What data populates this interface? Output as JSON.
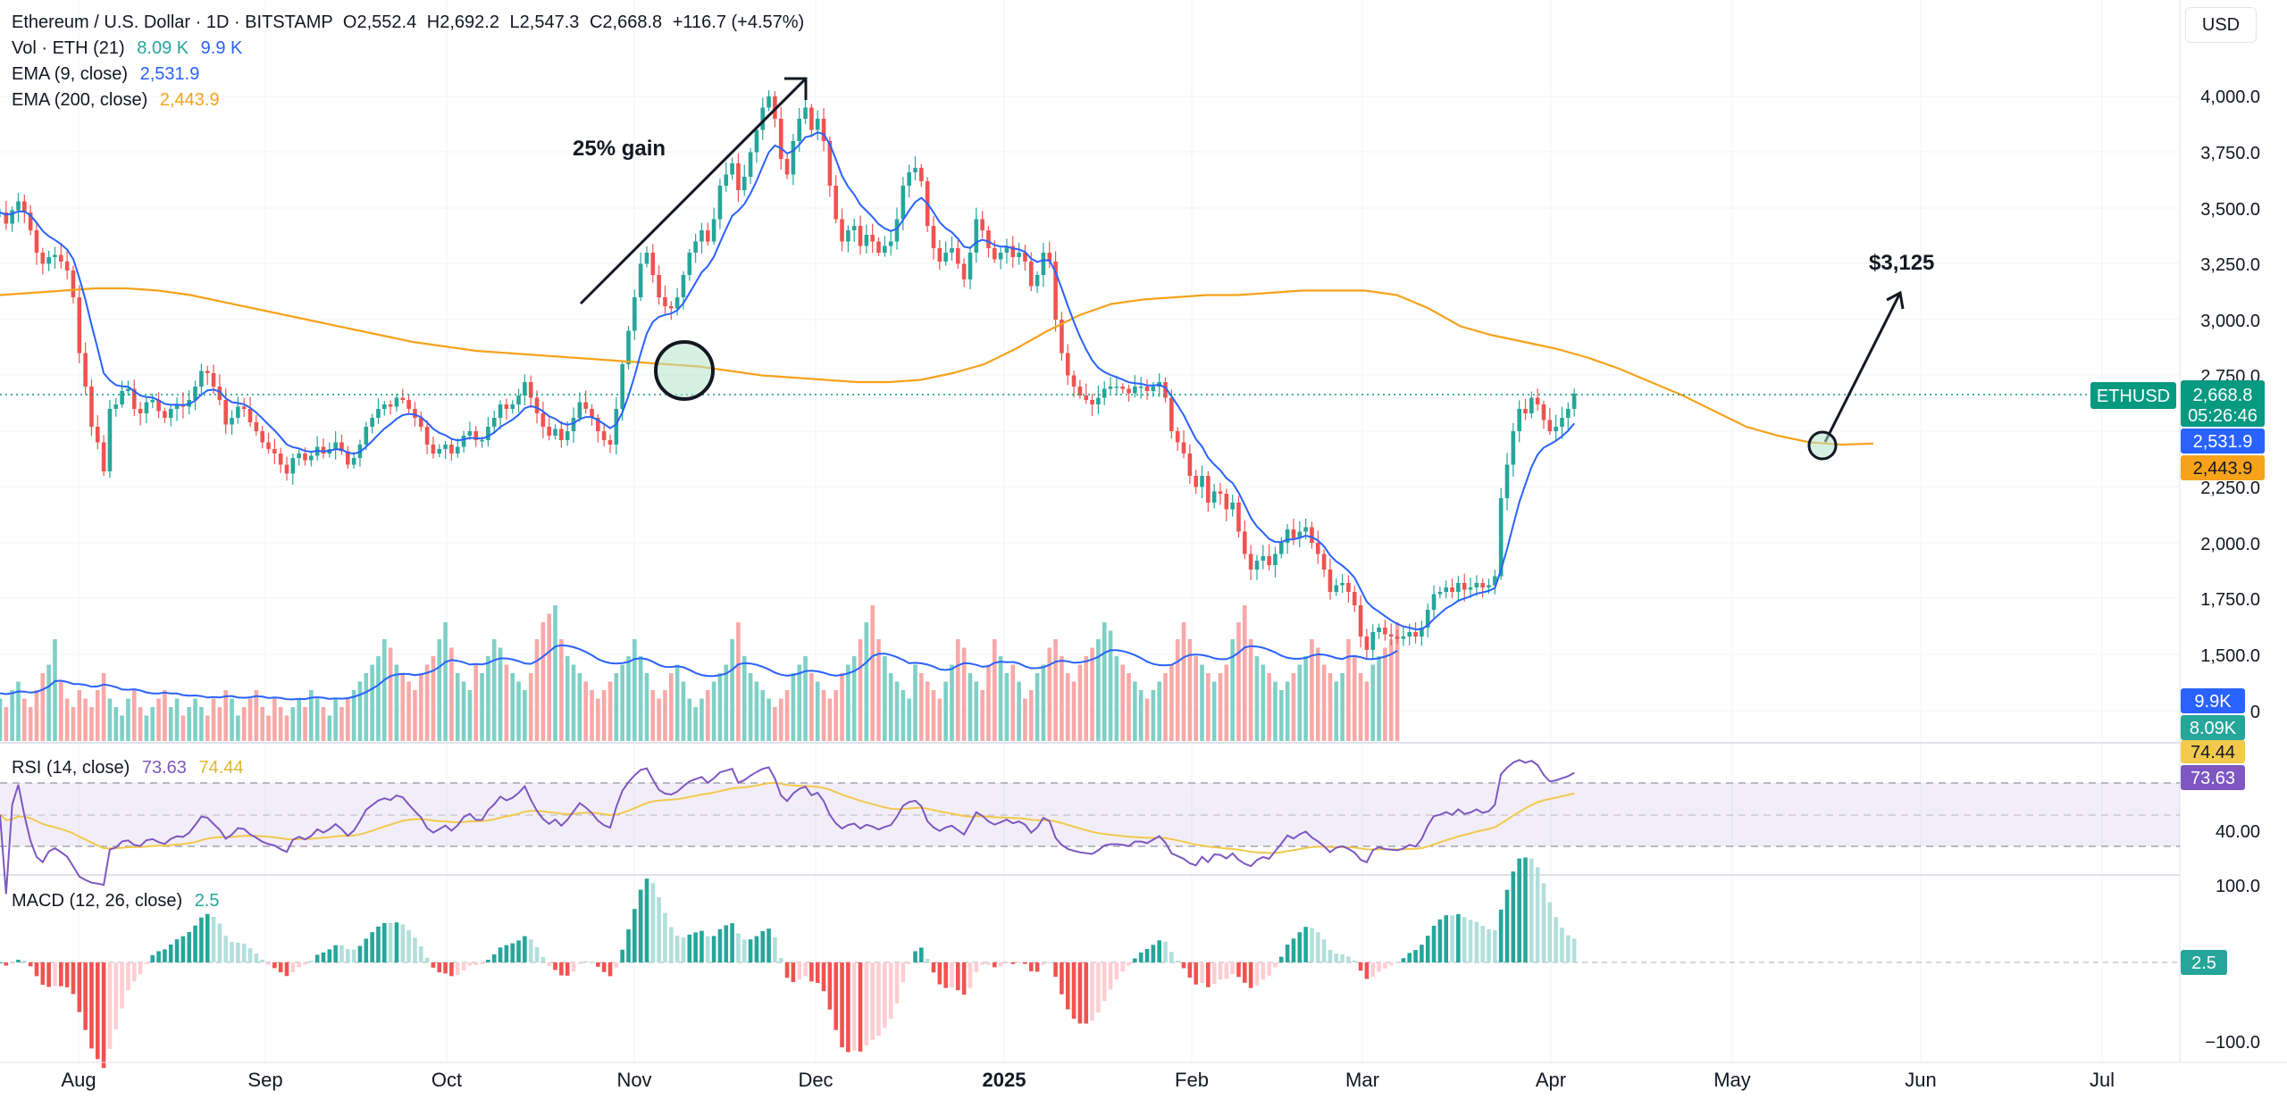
{
  "header": {
    "symbol_title": "Ethereum / U.S. Dollar · 1D · BITSTAMP",
    "ohlc": {
      "o_label": "O",
      "o": "2,552.4",
      "h_label": "H",
      "h": "2,692.2",
      "l_label": "L",
      "l": "2,547.3",
      "c_label": "C",
      "c": "2,668.8",
      "change": "+116.7 (+4.57%)"
    },
    "vol": {
      "label": "Vol · ETH (21)",
      "v1": "8.09 K",
      "v2": "9.9 K"
    },
    "ema9": {
      "label": "EMA (9, close)",
      "value": "2,531.9"
    },
    "ema200": {
      "label": "EMA (200, close)",
      "value": "2,443.9"
    }
  },
  "currency_button": "USD",
  "annotations": {
    "gain_text": "25% gain",
    "target_text": "$3,125"
  },
  "price_axis": {
    "ticks": [
      "4,000.0",
      "3,750.0",
      "3,500.0",
      "3,250.0",
      "3,000.0",
      "2,750.0",
      "2,250.0",
      "2,000.0",
      "1,750.0",
      "1,500.0",
      "0"
    ]
  },
  "badges": {
    "symbol": "ETHUSD",
    "price": "2,668.8",
    "countdown": "05:26:46",
    "ema9": "2,531.9",
    "ema200": "2,443.9",
    "vol1": "9.9K",
    "vol2": "8.09K",
    "rsi_ma": "74.44",
    "rsi": "73.63",
    "macd": "2.5"
  },
  "rsi_pane": {
    "label": "RSI (14, close)",
    "value": "73.63",
    "ma_value": "74.44",
    "axis_ticks": [
      "40.00"
    ]
  },
  "macd_pane": {
    "label": "MACD (12, 26, close)",
    "value": "2.5",
    "axis_ticks": [
      "100.0",
      "−100.0"
    ]
  },
  "time_axis": {
    "labels": [
      "Aug",
      "Sep",
      "Oct",
      "Nov",
      "Dec",
      "2025",
      "Feb",
      "Mar",
      "Apr",
      "May",
      "Jun",
      "Jul"
    ]
  },
  "colors": {
    "up": "#26a69a",
    "down": "#ef5350",
    "ema9": "#2962ff",
    "ema200": "#f7a21b",
    "rsi": "#7e57c2",
    "rsi_ma": "#f2c94c",
    "ethusd_badge": "#089981"
  },
  "chart_data": {
    "type": "candlestick",
    "title": "Ethereum / U.S. Dollar · 1D · BITSTAMP",
    "x_start": "2024-07-20",
    "y_range": [
      1300,
      4150
    ],
    "price_series": [
      3480,
      3430,
      3490,
      3530,
      3480,
      3400,
      3300,
      3250,
      3280,
      3290,
      3260,
      3220,
      3100,
      2850,
      2700,
      2520,
      2450,
      2320,
      2600,
      2620,
      2680,
      2690,
      2600,
      2580,
      2630,
      2640,
      2590,
      2560,
      2600,
      2620,
      2610,
      2640,
      2700,
      2770,
      2760,
      2700,
      2640,
      2530,
      2560,
      2610,
      2600,
      2540,
      2500,
      2450,
      2420,
      2400,
      2350,
      2310,
      2380,
      2400,
      2370,
      2390,
      2430,
      2400,
      2420,
      2450,
      2410,
      2350,
      2380,
      2440,
      2520,
      2560,
      2600,
      2620,
      2610,
      2650,
      2640,
      2600,
      2560,
      2520,
      2440,
      2400,
      2420,
      2440,
      2400,
      2430,
      2480,
      2500,
      2460,
      2460,
      2520,
      2560,
      2620,
      2600,
      2620,
      2660,
      2720,
      2650,
      2580,
      2520,
      2480,
      2510,
      2460,
      2500,
      2560,
      2630,
      2600,
      2560,
      2500,
      2460,
      2440,
      2600,
      2800,
      2950,
      3100,
      3250,
      3300,
      3200,
      3100,
      3060,
      3050,
      3100,
      3200,
      3300,
      3350,
      3400,
      3350,
      3450,
      3600,
      3650,
      3700,
      3580,
      3640,
      3750,
      3850,
      3950,
      4000,
      3900,
      3720,
      3650,
      3800,
      3900,
      3950,
      3850,
      3900,
      3800,
      3600,
      3450,
      3350,
      3400,
      3420,
      3330,
      3380,
      3350,
      3300,
      3330,
      3350,
      3450,
      3600,
      3660,
      3680,
      3620,
      3420,
      3320,
      3260,
      3300,
      3320,
      3250,
      3180,
      3300,
      3450,
      3400,
      3320,
      3270,
      3300,
      3330,
      3280,
      3300,
      3260,
      3150,
      3200,
      3300,
      3260,
      3000,
      2850,
      2750,
      2700,
      2660,
      2640,
      2620,
      2650,
      2690,
      2700,
      2700,
      2690,
      2670,
      2700,
      2700,
      2680,
      2700,
      2720,
      2650,
      2500,
      2450,
      2400,
      2300,
      2250,
      2300,
      2180,
      2230,
      2220,
      2150,
      2180,
      2050,
      1950,
      1880,
      1920,
      1940,
      1900,
      1950,
      2000,
      2060,
      2020,
      2050,
      2070,
      2000,
      1950,
      1880,
      1780,
      1810,
      1820,
      1780,
      1720,
      1580,
      1520,
      1600,
      1620,
      1590,
      1580,
      1570,
      1580,
      1600,
      1580,
      1620,
      1700,
      1770,
      1780,
      1800,
      1780,
      1820,
      1790,
      1800,
      1820,
      1800,
      1810,
      1850,
      2200,
      2350,
      2500,
      2600,
      2580,
      2650,
      2620,
      2550,
      2500,
      2520,
      2560,
      2600,
      2668.8
    ],
    "ema200_series": [
      3110,
      3120,
      3130,
      3140,
      3140,
      3130,
      3110,
      3080,
      3050,
      3020,
      2990,
      2960,
      2930,
      2900,
      2880,
      2860,
      2850,
      2840,
      2830,
      2820,
      2810,
      2800,
      2790,
      2770,
      2750,
      2740,
      2730,
      2720,
      2720,
      2730,
      2760,
      2800,
      2870,
      2950,
      3020,
      3070,
      3090,
      3100,
      3110,
      3110,
      3120,
      3130,
      3130,
      3130,
      3110,
      3050,
      2970,
      2930,
      2900,
      2870,
      2830,
      2780,
      2720,
      2660,
      2590,
      2520,
      2480,
      2450,
      2440,
      2445
    ],
    "ema200_span_days": [
      0,
      307
    ],
    "volume_series_k": [
      5,
      4,
      6,
      7,
      5,
      4,
      6,
      8,
      9,
      12,
      7,
      5,
      4,
      6,
      5,
      4,
      6,
      8,
      5,
      4,
      3,
      5,
      6,
      4,
      3,
      4,
      5,
      6,
      4,
      5,
      3,
      4,
      5,
      4,
      3,
      5,
      4,
      6,
      5,
      3,
      4,
      5,
      6,
      4,
      3,
      5,
      4,
      3,
      4,
      5,
      4,
      6,
      5,
      4,
      3,
      5,
      4,
      5,
      6,
      7,
      8,
      9,
      10,
      12,
      11,
      9,
      8,
      7,
      6,
      8,
      9,
      10,
      12,
      14,
      11,
      8,
      7,
      6,
      9,
      8,
      10,
      12,
      11,
      9,
      8,
      7,
      6,
      8,
      12,
      14,
      15,
      16,
      12,
      10,
      9,
      8,
      7,
      6,
      5,
      6,
      7,
      8,
      9,
      10,
      12,
      10,
      8,
      6,
      5,
      6,
      8,
      9,
      7,
      5,
      4,
      5,
      6,
      7,
      8,
      9,
      12,
      14,
      10,
      8,
      7,
      6,
      5,
      4,
      5,
      6,
      8,
      9,
      10,
      8,
      7,
      6,
      5,
      6,
      8,
      9,
      10,
      12,
      14,
      16,
      12,
      10,
      8,
      7,
      6,
      5,
      9,
      8,
      7,
      6,
      5,
      7,
      9,
      12,
      11,
      8,
      7,
      6,
      9,
      12,
      10,
      8,
      9,
      7,
      5,
      6,
      8,
      9,
      11,
      12,
      10,
      8,
      7,
      9,
      10,
      11,
      12,
      14,
      13,
      10,
      9,
      8,
      7,
      6,
      5,
      6,
      7,
      8,
      9,
      12,
      14,
      12,
      10,
      9,
      8,
      7,
      8,
      9,
      12,
      14,
      16,
      12,
      10,
      9,
      8,
      7,
      6,
      7,
      8,
      9,
      10,
      12,
      11,
      9,
      8,
      7,
      8,
      12,
      10,
      8,
      7,
      9,
      10,
      11,
      12,
      14
    ],
    "rsi_range": [
      20,
      85
    ],
    "macd_range": [
      -110,
      110
    ],
    "axes": {
      "price": "right",
      "time": "bottom"
    },
    "grid": true
  }
}
